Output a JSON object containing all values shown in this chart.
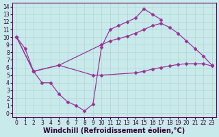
{
  "bg_color": "#c8eaea",
  "line_color": "#993399",
  "grid_color": "#b8d8d8",
  "xlabel": "Windchill (Refroidissement éolien,°C)",
  "xlim_min": -0.5,
  "xlim_max": 23.5,
  "ylim_min": -0.5,
  "ylim_max": 14.5,
  "xticks": [
    0,
    1,
    2,
    3,
    4,
    5,
    6,
    7,
    8,
    9,
    10,
    11,
    12,
    13,
    14,
    15,
    16,
    17,
    18,
    19,
    20,
    21,
    22,
    23
  ],
  "yticks": [
    0,
    1,
    2,
    3,
    4,
    5,
    6,
    7,
    8,
    9,
    10,
    11,
    12,
    13,
    14
  ],
  "line1_x": [
    0,
    1,
    2,
    3,
    4,
    5,
    6,
    7,
    8,
    9,
    10,
    11,
    12,
    13,
    14,
    15,
    16,
    17
  ],
  "line1_y": [
    10.0,
    8.5,
    5.5,
    4.0,
    4.0,
    2.5,
    1.5,
    1.0,
    0.3,
    1.2,
    8.7,
    11.0,
    11.5,
    12.0,
    12.5,
    13.7,
    13.0,
    12.3
  ],
  "line2_x": [
    0,
    2,
    5,
    10,
    11,
    12,
    13,
    14,
    15,
    16,
    17,
    18,
    19,
    20,
    21,
    22,
    23
  ],
  "line2_y": [
    10.0,
    5.5,
    6.3,
    9.0,
    9.5,
    9.8,
    10.1,
    10.5,
    11.0,
    11.5,
    11.8,
    11.3,
    10.5,
    9.5,
    8.5,
    7.5,
    6.3
  ],
  "line3_x": [
    0,
    2,
    5,
    9,
    10,
    14,
    15,
    16,
    17,
    18,
    19,
    20,
    21,
    22,
    23
  ],
  "line3_y": [
    10.0,
    5.5,
    6.3,
    5.0,
    5.0,
    5.3,
    5.5,
    5.8,
    6.0,
    6.2,
    6.4,
    6.5,
    6.5,
    6.5,
    6.2
  ],
  "marker": "D",
  "markersize": 2.5,
  "linewidth": 0.9,
  "tick_fontsize": 5.5,
  "xlabel_fontsize": 7
}
